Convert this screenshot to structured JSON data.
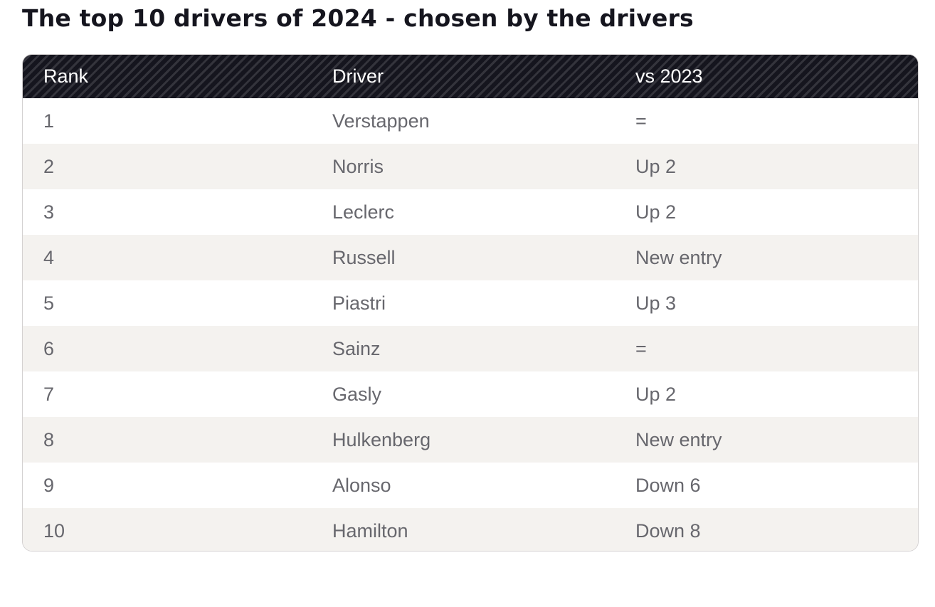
{
  "title": "The top 10 drivers of 2024 - chosen by the drivers",
  "table": {
    "headers": {
      "rank": "Rank",
      "driver": "Driver",
      "change": "vs 2023"
    },
    "rows": [
      {
        "rank": "1",
        "driver": "Verstappen",
        "change": "="
      },
      {
        "rank": "2",
        "driver": "Norris",
        "change": "Up 2"
      },
      {
        "rank": "3",
        "driver": "Leclerc",
        "change": "Up 2"
      },
      {
        "rank": "4",
        "driver": "Russell",
        "change": "New entry"
      },
      {
        "rank": "5",
        "driver": "Piastri",
        "change": "Up 3"
      },
      {
        "rank": "6",
        "driver": "Sainz",
        "change": "="
      },
      {
        "rank": "7",
        "driver": "Gasly",
        "change": "Up 2"
      },
      {
        "rank": "8",
        "driver": "Hulkenberg",
        "change": "New entry"
      },
      {
        "rank": "9",
        "driver": "Alonso",
        "change": "Down 6"
      },
      {
        "rank": "10",
        "driver": "Hamilton",
        "change": "Down 8"
      }
    ]
  },
  "colors": {
    "header_background": "#15151e",
    "header_stripe": "#34343c",
    "header_text": "#ffffff",
    "row_alt_background": "#f4f2ef",
    "cell_text": "#67676d",
    "title_text": "#15151e"
  }
}
